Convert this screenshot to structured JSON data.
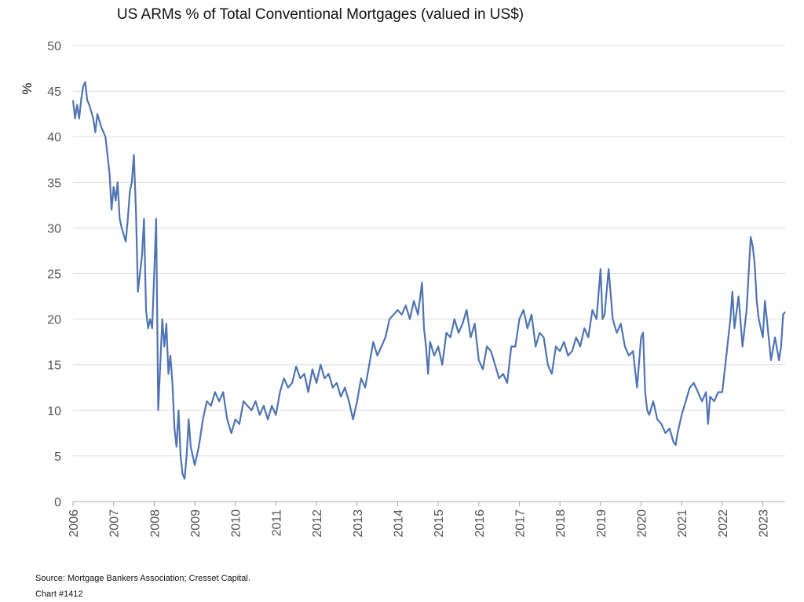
{
  "chart_data": {
    "type": "line",
    "title": "US ARMs % of Total Conventional Mortgages (valued in US$)",
    "ylabel": "%",
    "source": "Source: Mortgage Bankers Association; Cresset Capital.",
    "chart_id": "Chart #1412",
    "xlim": [
      2006,
      2023.55
    ],
    "ylim": [
      0,
      50
    ],
    "xticks": [
      2006,
      2007,
      2008,
      2009,
      2010,
      2011,
      2012,
      2013,
      2014,
      2015,
      2016,
      2017,
      2018,
      2019,
      2020,
      2021,
      2022,
      2023
    ],
    "yticks": [
      0,
      5,
      10,
      15,
      20,
      25,
      30,
      35,
      40,
      45,
      50
    ],
    "grid": true,
    "series": [
      {
        "name": "US ARMs %",
        "color": "#4f74b3",
        "x": [
          2006.0,
          2006.05,
          2006.1,
          2006.15,
          2006.2,
          2006.25,
          2006.3,
          2006.35,
          2006.4,
          2006.5,
          2006.55,
          2006.6,
          2006.7,
          2006.8,
          2006.85,
          2006.9,
          2006.95,
          2007.0,
          2007.05,
          2007.1,
          2007.15,
          2007.2,
          2007.3,
          2007.35,
          2007.4,
          2007.45,
          2007.5,
          2007.55,
          2007.6,
          2007.65,
          2007.7,
          2007.75,
          2007.8,
          2007.85,
          2007.9,
          2007.95,
          2008.0,
          2008.05,
          2008.1,
          2008.15,
          2008.2,
          2008.25,
          2008.3,
          2008.35,
          2008.4,
          2008.45,
          2008.5,
          2008.55,
          2008.6,
          2008.65,
          2008.7,
          2008.75,
          2008.8,
          2008.85,
          2008.9,
          2008.95,
          2009.0,
          2009.1,
          2009.2,
          2009.3,
          2009.4,
          2009.5,
          2009.6,
          2009.7,
          2009.8,
          2009.9,
          2010.0,
          2010.1,
          2010.2,
          2010.3,
          2010.4,
          2010.5,
          2010.6,
          2010.7,
          2010.8,
          2010.9,
          2011.0,
          2011.1,
          2011.2,
          2011.3,
          2011.4,
          2011.5,
          2011.6,
          2011.7,
          2011.8,
          2011.9,
          2012.0,
          2012.1,
          2012.2,
          2012.3,
          2012.4,
          2012.5,
          2012.6,
          2012.7,
          2012.8,
          2012.9,
          2013.0,
          2013.1,
          2013.2,
          2013.3,
          2013.4,
          2013.5,
          2013.6,
          2013.7,
          2013.8,
          2013.9,
          2014.0,
          2014.1,
          2014.2,
          2014.3,
          2014.4,
          2014.5,
          2014.6,
          2014.65,
          2014.7,
          2014.75,
          2014.8,
          2014.9,
          2015.0,
          2015.1,
          2015.2,
          2015.3,
          2015.4,
          2015.5,
          2015.6,
          2015.7,
          2015.8,
          2015.9,
          2016.0,
          2016.1,
          2016.2,
          2016.3,
          2016.4,
          2016.5,
          2016.6,
          2016.7,
          2016.8,
          2016.9,
          2017.0,
          2017.1,
          2017.2,
          2017.3,
          2017.4,
          2017.5,
          2017.6,
          2017.7,
          2017.8,
          2017.9,
          2018.0,
          2018.1,
          2018.2,
          2018.3,
          2018.4,
          2018.5,
          2018.6,
          2018.7,
          2018.8,
          2018.9,
          2019.0,
          2019.05,
          2019.1,
          2019.2,
          2019.3,
          2019.4,
          2019.5,
          2019.6,
          2019.7,
          2019.8,
          2019.9,
          2020.0,
          2020.05,
          2020.1,
          2020.15,
          2020.2,
          2020.3,
          2020.4,
          2020.5,
          2020.6,
          2020.7,
          2020.8,
          2020.85,
          2020.9,
          2021.0,
          2021.1,
          2021.2,
          2021.3,
          2021.4,
          2021.5,
          2021.6,
          2021.65,
          2021.7,
          2021.8,
          2021.9,
          2022.0,
          2022.1,
          2022.2,
          2022.25,
          2022.3,
          2022.4,
          2022.5,
          2022.6,
          2022.7,
          2022.75,
          2022.8,
          2022.85,
          2022.9,
          2023.0,
          2023.05,
          2023.1,
          2023.2,
          2023.3,
          2023.4,
          2023.45,
          2023.5,
          2023.55
        ],
        "values": [
          44,
          42,
          43.5,
          42,
          44,
          45.5,
          46,
          44,
          43.5,
          42,
          40.5,
          42.5,
          41,
          40,
          38,
          36,
          32,
          34.5,
          33,
          35,
          31,
          30,
          28.5,
          31,
          34,
          35,
          38,
          32,
          23,
          25,
          27,
          31,
          21,
          19,
          20,
          19,
          25,
          31,
          10,
          15,
          20,
          17,
          19.5,
          14,
          16,
          13,
          8,
          6,
          10,
          5,
          3,
          2.5,
          5,
          9,
          6,
          5,
          4,
          6,
          9,
          11,
          10.5,
          12,
          11,
          12,
          9,
          7.5,
          9,
          8.5,
          11,
          10.5,
          10,
          11,
          9.5,
          10.5,
          9,
          10.5,
          9.5,
          12,
          13.5,
          12.5,
          13,
          14.8,
          13.5,
          14,
          12,
          14.5,
          13,
          15,
          13.5,
          14,
          12.5,
          13,
          11.5,
          12.5,
          11,
          9,
          11,
          13.5,
          12.5,
          15,
          17.5,
          16,
          17,
          18,
          20,
          20.5,
          21,
          20.5,
          21.5,
          20,
          22,
          20.5,
          24,
          19,
          17,
          14,
          17.5,
          16,
          17,
          15,
          18.5,
          18,
          20,
          18.5,
          19.5,
          21,
          18,
          19.5,
          15.5,
          14.5,
          17,
          16.5,
          15,
          13.5,
          14,
          13,
          17,
          17,
          20,
          21,
          19,
          20.5,
          17,
          18.5,
          18,
          15,
          14,
          17,
          16.5,
          17.5,
          16,
          16.5,
          18,
          17,
          19,
          18,
          21,
          20,
          25.5,
          20,
          20.5,
          25.5,
          20,
          18.5,
          19.5,
          17,
          16,
          16.5,
          12.5,
          18,
          18.5,
          12,
          10,
          9.5,
          11,
          9,
          8.5,
          7.5,
          8,
          6.5,
          6.2,
          7.5,
          9.5,
          11,
          12.5,
          13,
          12,
          11,
          12,
          8.5,
          11.5,
          11,
          12,
          12,
          16,
          20,
          23,
          19,
          22.5,
          17,
          21,
          29,
          28,
          26,
          22,
          20,
          18,
          22,
          20,
          15.5,
          18,
          15.5,
          17,
          20.5,
          20.8
        ]
      }
    ]
  }
}
